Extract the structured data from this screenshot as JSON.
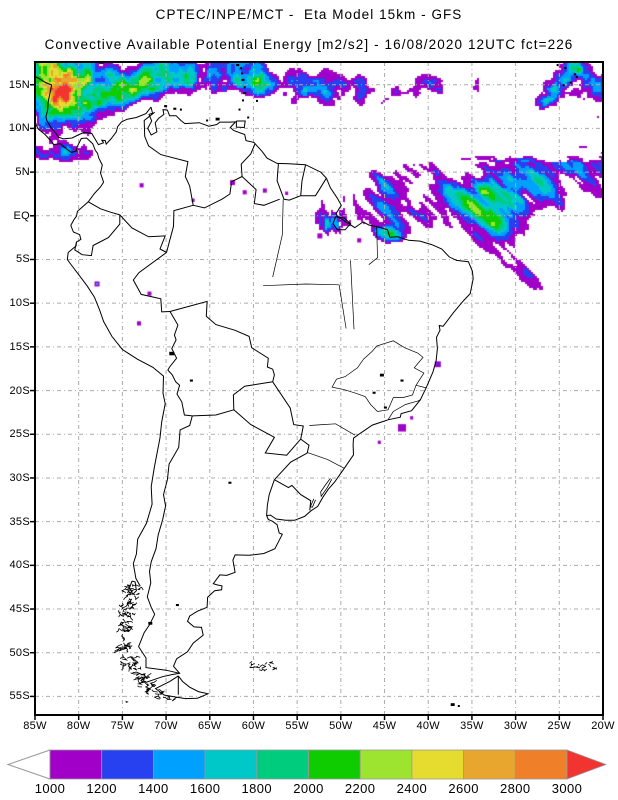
{
  "title": {
    "line1": "CPTEC/INPE/MCT -  Eta Model 15km - GFS",
    "line2": "Convective Available Potential Energy [m2/s2] - 16/08/2020 12UTC fct=226"
  },
  "map": {
    "lat_ticks": [
      {
        "value": 15,
        "label": "15N"
      },
      {
        "value": 10,
        "label": "10N"
      },
      {
        "value": 5,
        "label": "5N"
      },
      {
        "value": 0,
        "label": "EQ"
      },
      {
        "value": -5,
        "label": "5S"
      },
      {
        "value": -10,
        "label": "10S"
      },
      {
        "value": -15,
        "label": "15S"
      },
      {
        "value": -20,
        "label": "20S"
      },
      {
        "value": -25,
        "label": "25S"
      },
      {
        "value": -30,
        "label": "30S"
      },
      {
        "value": -35,
        "label": "35S"
      },
      {
        "value": -40,
        "label": "40S"
      },
      {
        "value": -45,
        "label": "45S"
      },
      {
        "value": -50,
        "label": "50S"
      },
      {
        "value": -55,
        "label": "55S"
      }
    ],
    "lon_ticks": [
      {
        "value": -85,
        "label": "85W"
      },
      {
        "value": -80,
        "label": "80W"
      },
      {
        "value": -75,
        "label": "75W"
      },
      {
        "value": -70,
        "label": "70W"
      },
      {
        "value": -65,
        "label": "65W"
      },
      {
        "value": -60,
        "label": "60W"
      },
      {
        "value": -55,
        "label": "55W"
      },
      {
        "value": -50,
        "label": "50W"
      },
      {
        "value": -45,
        "label": "45W"
      },
      {
        "value": -40,
        "label": "40W"
      },
      {
        "value": -35,
        "label": "35W"
      },
      {
        "value": -30,
        "label": "30W"
      },
      {
        "value": -25,
        "label": "25W"
      },
      {
        "value": -20,
        "label": "20W"
      }
    ]
  },
  "chart_data": {
    "type": "heatmap",
    "subtype": "filled-contour weather map",
    "title": "CPTEC/INPE/MCT -  Eta Model 15km - GFS",
    "subtitle": "Convective Available Potential Energy [m2/s2] - 16/08/2020 12UTC fct=226",
    "variable": "Convective Available Potential Energy",
    "units": "m2/s2",
    "center": "CPTEC/INPE/MCT",
    "model": "Eta Model 15km",
    "boundary_conditions": "GFS",
    "valid": "16/08/2020 12UTC",
    "forecast_hour": "fct=226",
    "extent": {
      "lon_min": -85,
      "lon_max": -20,
      "lat_min": -57.1,
      "lat_max": 17.6
    },
    "x_axis": {
      "ticks": [
        "85W",
        "80W",
        "75W",
        "70W",
        "65W",
        "60W",
        "55W",
        "50W",
        "45W",
        "40W",
        "35W",
        "30W",
        "25W",
        "20W"
      ]
    },
    "y_axis": {
      "ticks": [
        "15N",
        "10N",
        "5N",
        "EQ",
        "5S",
        "10S",
        "15S",
        "20S",
        "25S",
        "30S",
        "35S",
        "40S",
        "45S",
        "50S",
        "55S"
      ]
    },
    "colorbar": {
      "levels": [
        1000,
        1200,
        1400,
        1600,
        1800,
        2000,
        2200,
        2400,
        2600,
        2800,
        3000
      ],
      "labels": [
        "1000",
        "1200",
        "1400",
        "1600",
        "1800",
        "2000",
        "2200",
        "2400",
        "2600",
        "2800",
        "3000"
      ],
      "colors": [
        "#A000C8",
        "#2841F0",
        "#00A0FF",
        "#00C8C8",
        "#00CC7E",
        "#0ECC00",
        "#9CE430",
        "#E6DC30",
        "#E8A62E",
        "#EF7F28"
      ],
      "below_color": "#FFFFFF",
      "above_color": "#F23430"
    },
    "field_summary": [
      "CAPE above 2600-3000 m2/s2 over the western Caribbean near Central America and in a band along 12-17N west of 55W",
      "Broad mottled 1000-2400 m2/s2 band along the Atlantic ITCZ from the Guianas/Amazon-mouth coast east to 20W, trailing southeast to about 8S near 30W",
      "Narrow 1000-1800 m2/s2 strip along the Andes of Ecuador/northern Peru",
      "Isolated 1000-1400 m2/s2 specks over interior Guyana/Venezuela, the Amazon mouth and off the southeast Brazilian coast",
      "CAPE below 1000 m2/s2 (white) over most of the continent south of the equator"
    ]
  }
}
